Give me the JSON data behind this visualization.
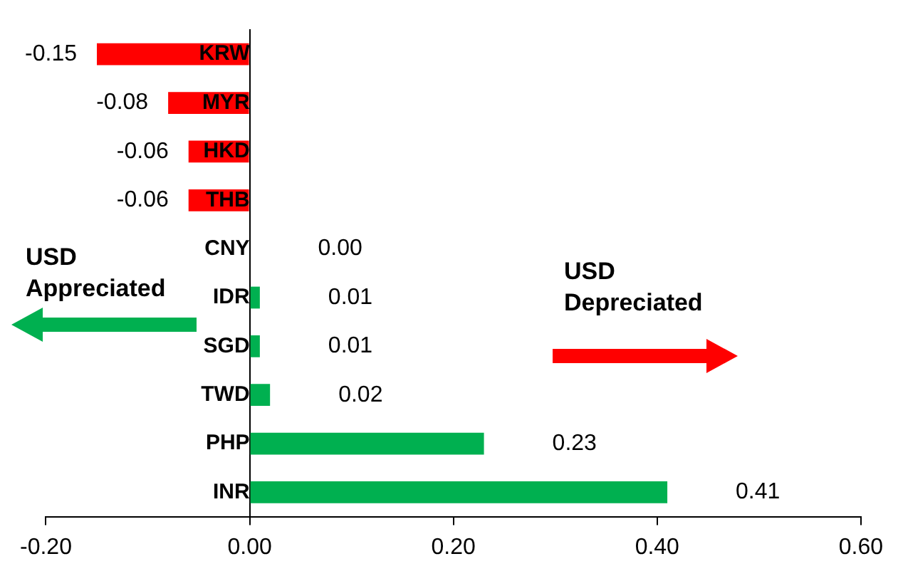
{
  "chart_data": {
    "type": "bar",
    "orientation": "horizontal",
    "categories": [
      "KRW",
      "MYR",
      "HKD",
      "THB",
      "CNY",
      "IDR",
      "SGD",
      "TWD",
      "PHP",
      "INR"
    ],
    "values": [
      -0.15,
      -0.08,
      -0.06,
      -0.06,
      0.0,
      0.01,
      0.01,
      0.02,
      0.23,
      0.41
    ],
    "colors": [
      "#ff0000",
      "#ff0000",
      "#ff0000",
      "#ff0000",
      "#00b050",
      "#00b050",
      "#00b050",
      "#00b050",
      "#00b050",
      "#00b050"
    ],
    "value_labels": [
      "-0.15",
      "-0.08",
      "-0.06",
      "-0.06",
      "0.00",
      "0.01",
      "0.01",
      "0.02",
      "0.23",
      "0.41"
    ],
    "xlim": [
      -0.2,
      0.6
    ],
    "xticks": [
      {
        "value": -0.2,
        "label": "-0.20"
      },
      {
        "value": 0,
        "label": "0.00"
      },
      {
        "value": 0.2,
        "label": "0.20"
      },
      {
        "value": 0.4,
        "label": "0.40"
      },
      {
        "value": 0.6,
        "label": "0.60"
      }
    ],
    "grid": false,
    "legend": false,
    "annotations": [
      "USD Appreciated",
      "USD Depreciated"
    ]
  }
}
